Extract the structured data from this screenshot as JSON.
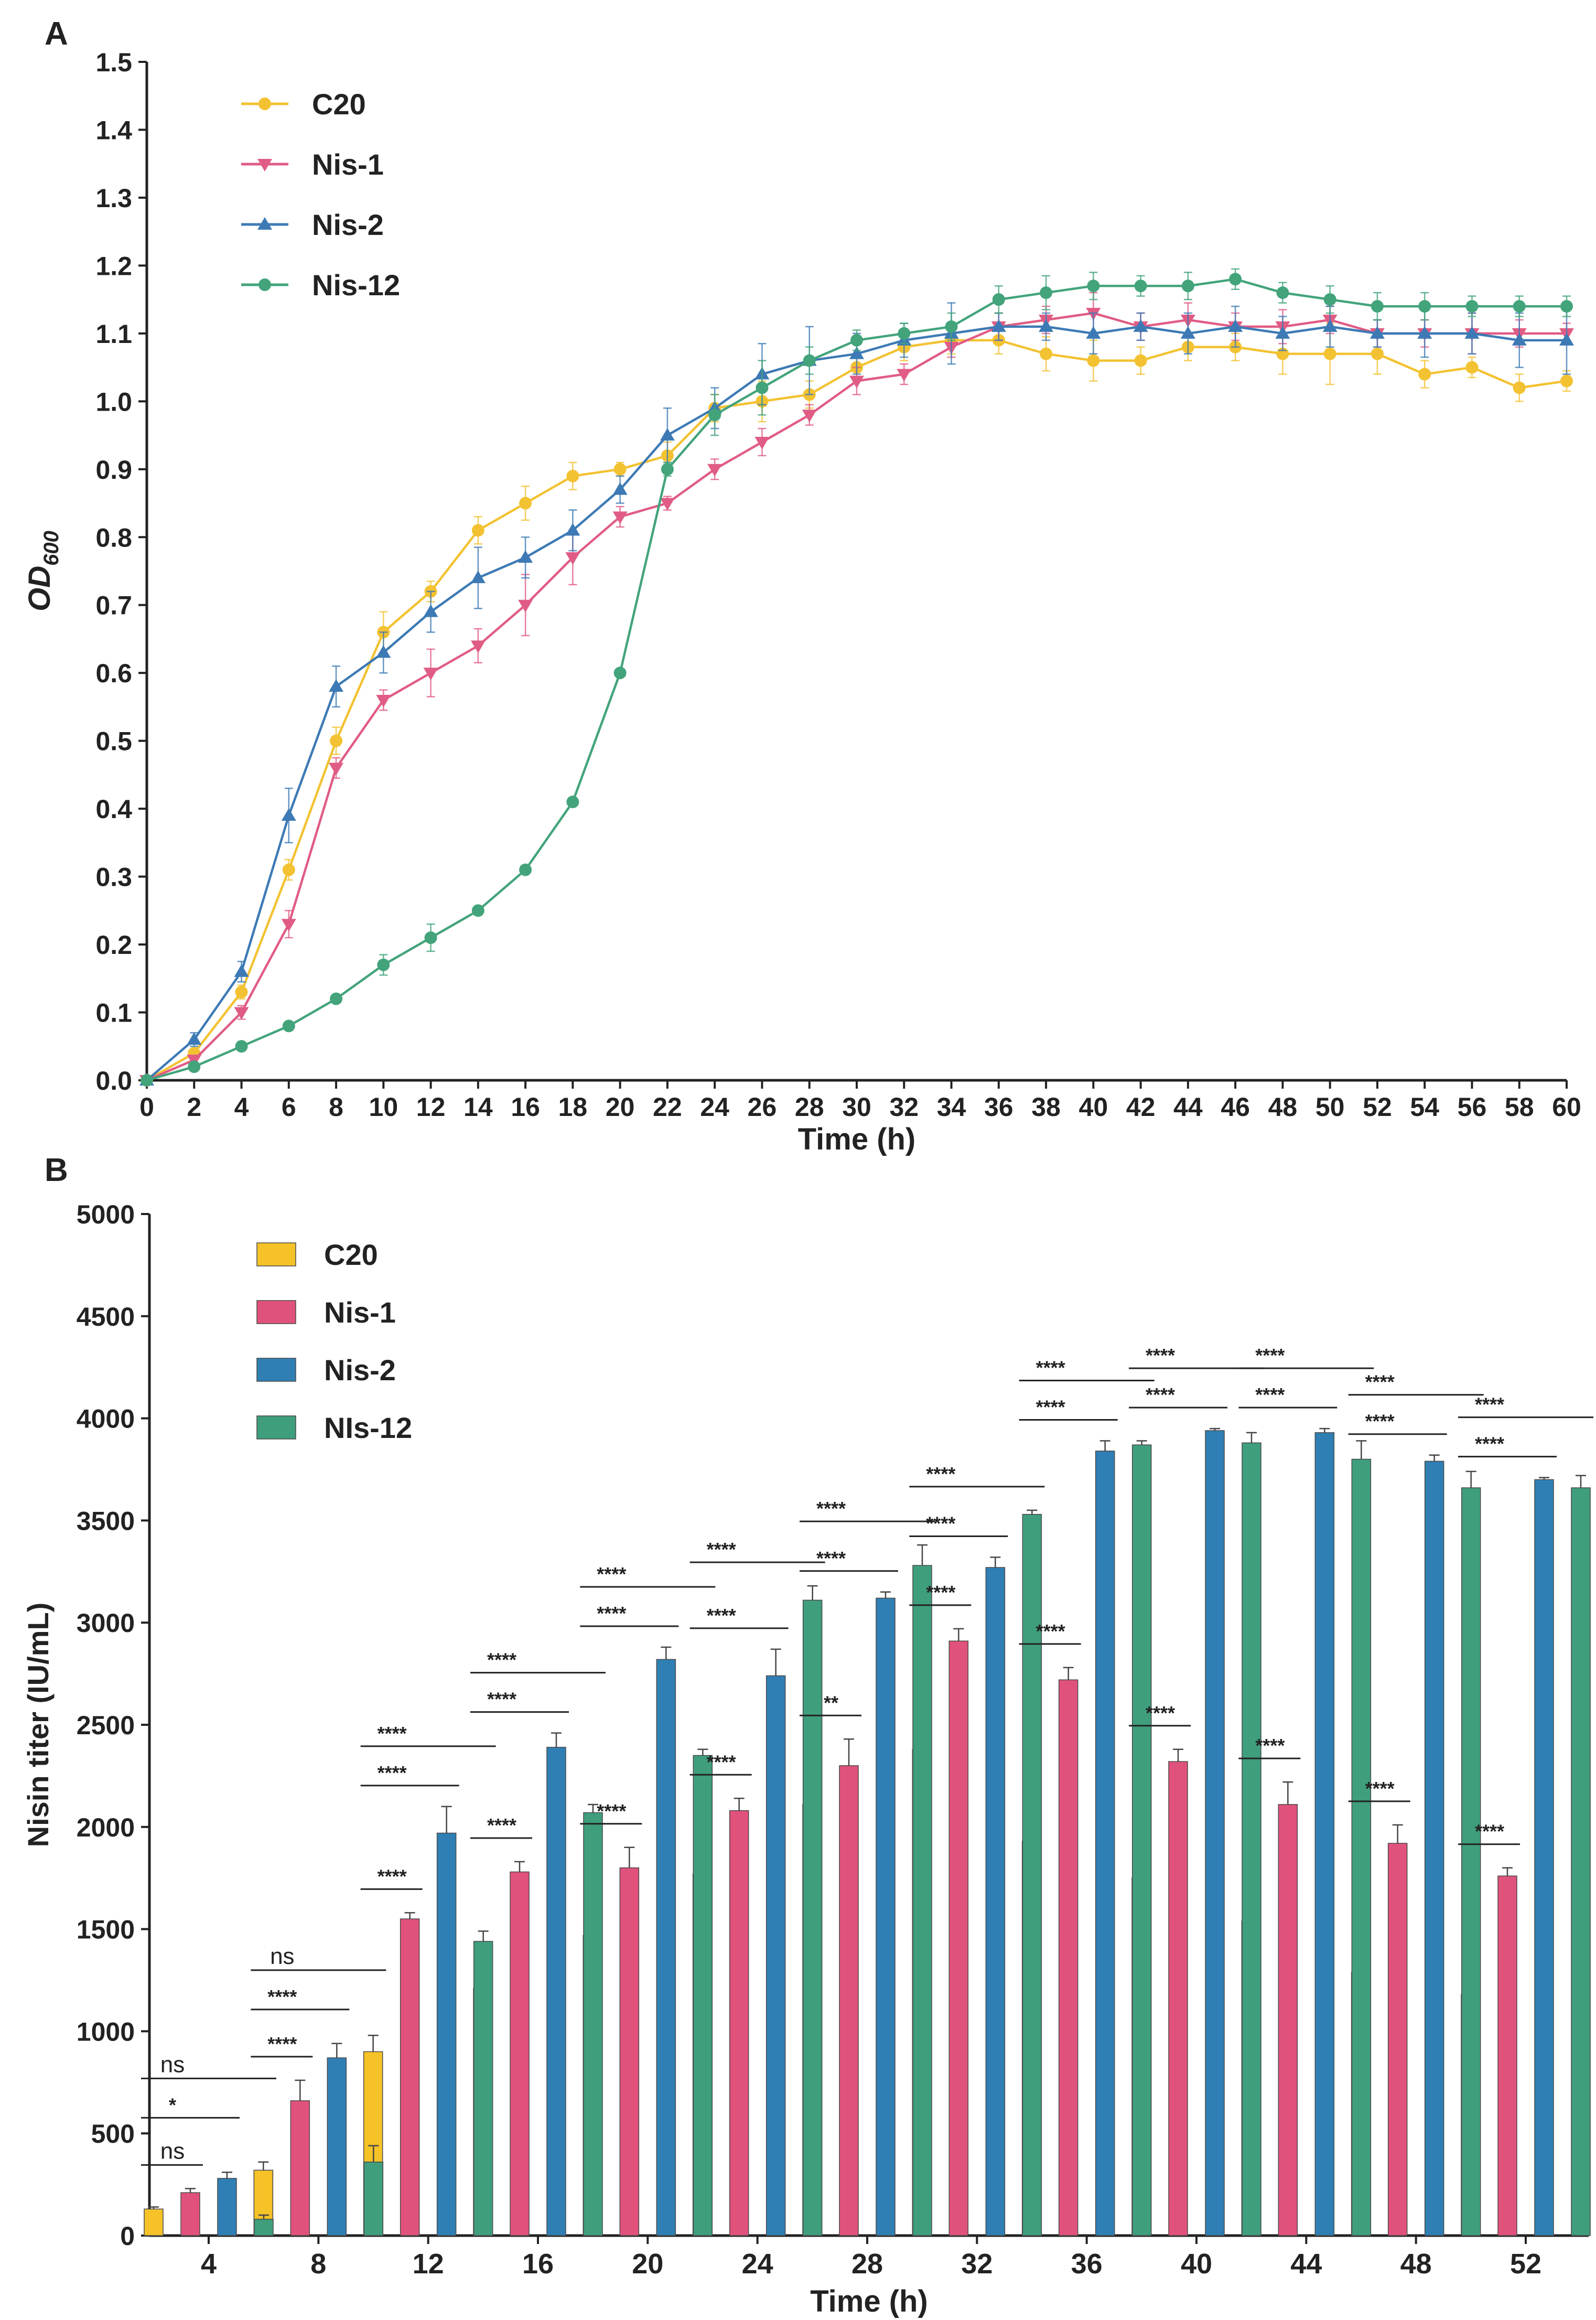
{
  "chart_data": [
    {
      "panel": "A",
      "type": "line",
      "title": "",
      "xlabel": "Time (h)",
      "ylabel_main": "OD",
      "ylabel_sub": "600",
      "xlim": [
        0,
        60
      ],
      "ylim": [
        0,
        1.5
      ],
      "xticks": [
        0,
        2,
        4,
        6,
        8,
        10,
        12,
        14,
        16,
        18,
        20,
        22,
        24,
        26,
        28,
        30,
        32,
        34,
        36,
        38,
        40,
        42,
        44,
        46,
        48,
        50,
        52,
        54,
        56,
        58,
        60
      ],
      "yticks": [
        0.0,
        0.1,
        0.2,
        0.3,
        0.4,
        0.5,
        0.6,
        0.7,
        0.8,
        0.9,
        1.0,
        1.1,
        1.2,
        1.3,
        1.4,
        1.5
      ],
      "grid": false,
      "legend_position": "top-left",
      "x": [
        0,
        2,
        4,
        6,
        8,
        10,
        12,
        14,
        16,
        18,
        20,
        22,
        24,
        26,
        28,
        30,
        32,
        34,
        36,
        38,
        40,
        42,
        44,
        46,
        48,
        50,
        52,
        54,
        56,
        58,
        60
      ],
      "series": [
        {
          "name": "C20",
          "color": "#f3c232",
          "marker": "circle",
          "values": [
            0.0,
            0.04,
            0.13,
            0.31,
            0.5,
            0.66,
            0.72,
            0.81,
            0.85,
            0.89,
            0.9,
            0.92,
            0.99,
            1.0,
            1.01,
            1.05,
            1.08,
            1.09,
            1.09,
            1.07,
            1.06,
            1.06,
            1.08,
            1.08,
            1.07,
            1.07,
            1.07,
            1.04,
            1.05,
            1.02,
            1.03
          ],
          "errors": [
            0,
            0.005,
            0.01,
            0.015,
            0.02,
            0.03,
            0.015,
            0.02,
            0.025,
            0.02,
            0.01,
            0.02,
            0.02,
            0.03,
            0.02,
            0.02,
            0.02,
            0.02,
            0.02,
            0.025,
            0.03,
            0.02,
            0.02,
            0.02,
            0.03,
            0.045,
            0.03,
            0.02,
            0.015,
            0.02,
            0.015
          ]
        },
        {
          "name": "Nis-1",
          "color": "#e05c84",
          "marker": "triangle-down",
          "values": [
            0.0,
            0.03,
            0.1,
            0.23,
            0.46,
            0.56,
            0.6,
            0.64,
            0.7,
            0.77,
            0.83,
            0.85,
            0.9,
            0.94,
            0.98,
            1.03,
            1.04,
            1.08,
            1.11,
            1.12,
            1.13,
            1.11,
            1.12,
            1.11,
            1.11,
            1.12,
            1.1,
            1.1,
            1.1,
            1.1,
            1.1
          ],
          "errors": [
            0,
            0.005,
            0.01,
            0.02,
            0.015,
            0.015,
            0.035,
            0.025,
            0.045,
            0.04,
            0.015,
            0.01,
            0.015,
            0.02,
            0.015,
            0.02,
            0.015,
            0.015,
            0.02,
            0.02,
            0.03,
            0.02,
            0.025,
            0.02,
            0.025,
            0.02,
            0.02,
            0.02,
            0.03,
            0.02,
            0.015
          ]
        },
        {
          "name": "Nis-2",
          "color": "#3d7ab5",
          "marker": "triangle-up",
          "values": [
            0.0,
            0.06,
            0.16,
            0.39,
            0.58,
            0.63,
            0.69,
            0.74,
            0.77,
            0.81,
            0.87,
            0.95,
            0.99,
            1.04,
            1.06,
            1.07,
            1.09,
            1.1,
            1.11,
            1.11,
            1.1,
            1.11,
            1.1,
            1.11,
            1.1,
            1.11,
            1.1,
            1.1,
            1.1,
            1.09,
            1.09
          ],
          "errors": [
            0,
            0.01,
            0.015,
            0.04,
            0.03,
            0.03,
            0.03,
            0.045,
            0.03,
            0.03,
            0.02,
            0.04,
            0.03,
            0.045,
            0.05,
            0.03,
            0.025,
            0.045,
            0.02,
            0.02,
            0.03,
            0.02,
            0.03,
            0.03,
            0.025,
            0.03,
            0.02,
            0.035,
            0.03,
            0.04,
            0.05
          ]
        },
        {
          "name": "Nis-12",
          "color": "#43a47b",
          "marker": "circle",
          "values": [
            0.0,
            0.02,
            0.05,
            0.08,
            0.12,
            0.17,
            0.21,
            0.25,
            0.31,
            0.41,
            0.6,
            0.9,
            0.98,
            1.02,
            1.06,
            1.09,
            1.1,
            1.11,
            1.15,
            1.16,
            1.17,
            1.17,
            1.17,
            1.18,
            1.16,
            1.15,
            1.14,
            1.14,
            1.14,
            1.14,
            1.14
          ],
          "errors": [
            0,
            0.005,
            0.005,
            0.005,
            0.005,
            0.015,
            0.02,
            0.005,
            0.005,
            0.005,
            0.005,
            0.01,
            0.03,
            0.04,
            0.02,
            0.015,
            0.015,
            0.02,
            0.02,
            0.025,
            0.02,
            0.015,
            0.02,
            0.015,
            0.015,
            0.02,
            0.02,
            0.02,
            0.015,
            0.015,
            0.015
          ]
        }
      ]
    },
    {
      "panel": "B",
      "type": "bar",
      "title": "",
      "xlabel": "Time (h)",
      "ylabel": "Nisin titer (IU/mL)",
      "ylim": [
        0,
        5000
      ],
      "yticks": [
        0,
        500,
        1000,
        1500,
        2000,
        2500,
        3000,
        3500,
        4000,
        4500,
        5000
      ],
      "grid": false,
      "legend_position": "top-left",
      "categories": [
        "4",
        "8",
        "12",
        "16",
        "20",
        "24",
        "28",
        "32",
        "36",
        "40",
        "44",
        "48",
        "52"
      ],
      "series": [
        {
          "name": "C20",
          "color": "#f5c228",
          "values": [
            130,
            320,
            900,
            1210,
            1470,
            1770,
            2110,
            2380,
            1930,
            1750,
            1540,
            1290,
            1180
          ],
          "errors": [
            10,
            40,
            80,
            40,
            90,
            40,
            140,
            70,
            140,
            80,
            80,
            40,
            50
          ]
        },
        {
          "name": "Nis-1",
          "color": "#e0527c",
          "values": [
            210,
            660,
            1550,
            1780,
            1800,
            2080,
            2300,
            2910,
            2720,
            2320,
            2110,
            1920,
            1760
          ],
          "errors": [
            20,
            100,
            30,
            50,
            100,
            60,
            130,
            60,
            60,
            60,
            110,
            90,
            40
          ]
        },
        {
          "name": "Nis-2",
          "color": "#2f7fb4",
          "values": [
            280,
            870,
            1970,
            2390,
            2820,
            2740,
            3120,
            3270,
            3840,
            3940,
            3930,
            3790,
            3700
          ],
          "errors": [
            30,
            70,
            130,
            70,
            60,
            130,
            30,
            50,
            50,
            10,
            20,
            30,
            10
          ]
        },
        {
          "name": "NIs-12",
          "color": "#3f9e7c",
          "values": [
            80,
            360,
            1440,
            2070,
            2350,
            3110,
            3280,
            3530,
            3870,
            3880,
            3800,
            3660,
            3660
          ],
          "errors": [
            20,
            80,
            50,
            40,
            30,
            70,
            100,
            20,
            20,
            50,
            90,
            80,
            60
          ]
        }
      ],
      "significance": [
        {
          "category": 0,
          "items": [
            {
              "from": 0,
              "to": 1,
              "label": "ns"
            },
            {
              "from": 0,
              "to": 2,
              "label": "*"
            },
            {
              "from": 0,
              "to": 3,
              "label": "ns"
            }
          ]
        },
        {
          "category": 1,
          "items": [
            {
              "from": 0,
              "to": 1,
              "label": "****"
            },
            {
              "from": 0,
              "to": 2,
              "label": "****"
            },
            {
              "from": 0,
              "to": 3,
              "label": "ns"
            }
          ]
        },
        {
          "category": 2,
          "items": [
            {
              "from": 0,
              "to": 1,
              "label": "****"
            },
            {
              "from": 0,
              "to": 2,
              "label": "****"
            },
            {
              "from": 0,
              "to": 3,
              "label": "****"
            }
          ]
        },
        {
          "category": 3,
          "items": [
            {
              "from": 0,
              "to": 1,
              "label": "****"
            },
            {
              "from": 0,
              "to": 2,
              "label": "****"
            },
            {
              "from": 0,
              "to": 3,
              "label": "****"
            }
          ]
        },
        {
          "category": 4,
          "items": [
            {
              "from": 0,
              "to": 1,
              "label": "****"
            },
            {
              "from": 0,
              "to": 2,
              "label": "****"
            },
            {
              "from": 0,
              "to": 3,
              "label": "****"
            }
          ]
        },
        {
          "category": 5,
          "items": [
            {
              "from": 0,
              "to": 1,
              "label": "****"
            },
            {
              "from": 0,
              "to": 2,
              "label": "****"
            },
            {
              "from": 0,
              "to": 3,
              "label": "****"
            }
          ]
        },
        {
          "category": 6,
          "items": [
            {
              "from": 0,
              "to": 1,
              "label": "**"
            },
            {
              "from": 0,
              "to": 2,
              "label": "****"
            },
            {
              "from": 0,
              "to": 3,
              "label": "****"
            }
          ]
        },
        {
          "category": 7,
          "items": [
            {
              "from": 0,
              "to": 1,
              "label": "****"
            },
            {
              "from": 0,
              "to": 2,
              "label": "****"
            },
            {
              "from": 0,
              "to": 3,
              "label": "****"
            }
          ]
        },
        {
          "category": 8,
          "items": [
            {
              "from": 0,
              "to": 1,
              "label": "****"
            },
            {
              "from": 0,
              "to": 2,
              "label": "****"
            },
            {
              "from": 0,
              "to": 3,
              "label": "****"
            }
          ]
        },
        {
          "category": 9,
          "items": [
            {
              "from": 0,
              "to": 1,
              "label": "****"
            },
            {
              "from": 0,
              "to": 2,
              "label": "****"
            },
            {
              "from": 0,
              "to": 3,
              "label": "****"
            }
          ]
        },
        {
          "category": 10,
          "items": [
            {
              "from": 0,
              "to": 1,
              "label": "****"
            },
            {
              "from": 0,
              "to": 2,
              "label": "****"
            },
            {
              "from": 0,
              "to": 3,
              "label": "****"
            }
          ]
        },
        {
          "category": 11,
          "items": [
            {
              "from": 0,
              "to": 1,
              "label": "****"
            },
            {
              "from": 0,
              "to": 2,
              "label": "****"
            },
            {
              "from": 0,
              "to": 3,
              "label": "****"
            }
          ]
        },
        {
          "category": 12,
          "items": [
            {
              "from": 0,
              "to": 1,
              "label": "****"
            },
            {
              "from": 0,
              "to": 2,
              "label": "****"
            },
            {
              "from": 0,
              "to": 3,
              "label": "****"
            }
          ]
        }
      ]
    }
  ]
}
